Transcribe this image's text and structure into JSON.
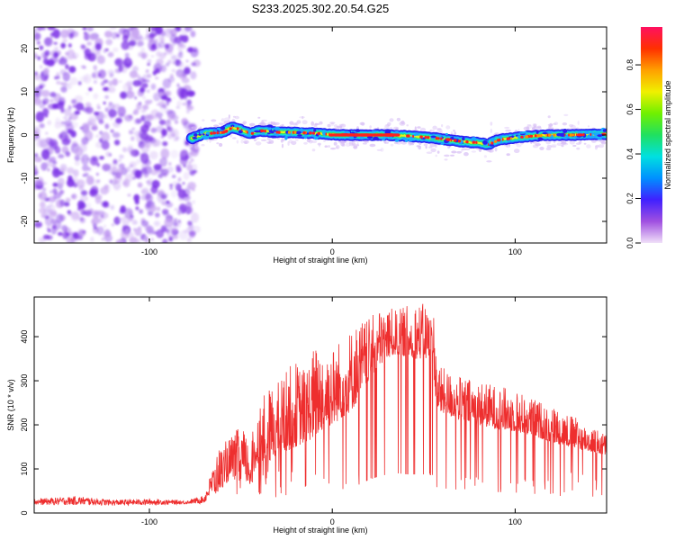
{
  "chart_data": [
    {
      "type": "heatmap",
      "title": "S233.2025.302.20.54.G25",
      "xlabel": "Height of straight line (km)",
      "ylabel": "Frequency (Hz)",
      "xlim": [
        -163,
        150
      ],
      "ylim": [
        -25,
        25
      ],
      "x_ticks": [
        -100,
        0,
        100
      ],
      "y_ticks": [
        -20,
        -10,
        0,
        10,
        20
      ],
      "colorbar": {
        "label": "Normalized spectral amplitude",
        "range": [
          0,
          0.97
        ],
        "ticks": [
          0.0,
          0.2,
          0.4,
          0.6,
          0.8
        ],
        "tick_labels": [
          "0.0",
          "0.2",
          "0.4",
          "0.6",
          "0.8"
        ],
        "colors": [
          "#f0e0f8",
          "#a050e0",
          "#4020ff",
          "#0090ff",
          "#00e0e0",
          "#20e060",
          "#70f000",
          "#f0f000",
          "#ffa000",
          "#ff3000",
          "#ff1060"
        ]
      },
      "noise_region": [
        -163,
        -77
      ],
      "noise_color": "#7a2ee6",
      "trace": {
        "x": [
          -77,
          -70,
          -60,
          -55,
          -50,
          -45,
          -40,
          -30,
          -20,
          -10,
          0,
          10,
          20,
          30,
          40,
          50,
          60,
          70,
          80,
          85,
          90,
          100,
          110,
          120,
          130,
          140,
          150
        ],
        "freq": [
          -0.8,
          0.3,
          0.6,
          1.8,
          1.2,
          0.3,
          1.0,
          0.6,
          0.6,
          0.4,
          0.1,
          0.0,
          0.0,
          0.0,
          -0.2,
          -0.5,
          -0.9,
          -1.5,
          -1.8,
          -2.2,
          -1.2,
          -0.6,
          -0.2,
          0.0,
          0.0,
          0.1,
          0.2
        ]
      }
    },
    {
      "type": "line",
      "series_name": "SNR",
      "xlabel": "Height of straight line (km)",
      "ylabel": "SNR (10 * v/v)",
      "xlim": [
        -163,
        150
      ],
      "ylim": [
        0,
        490
      ],
      "x_ticks": [
        -100,
        0,
        100
      ],
      "y_ticks": [
        0,
        100,
        200,
        300,
        400
      ],
      "color": "#ee2e2e",
      "envelope": {
        "x": [
          -163,
          -140,
          -120,
          -100,
          -80,
          -70,
          -62,
          -55,
          -50,
          -45,
          -40,
          -35,
          -30,
          -25,
          -20,
          -15,
          -10,
          -5,
          0,
          5,
          10,
          15,
          20,
          25,
          30,
          35,
          40,
          45,
          50,
          55,
          57,
          60,
          70,
          80,
          90,
          100,
          110,
          120,
          130,
          140,
          150
        ],
        "base": [
          18,
          18,
          17,
          18,
          20,
          22,
          50,
          80,
          90,
          60,
          120,
          115,
          130,
          140,
          150,
          160,
          170,
          190,
          200,
          215,
          230,
          260,
          300,
          330,
          350,
          360,
          355,
          350,
          350,
          345,
          235,
          225,
          210,
          200,
          190,
          185,
          175,
          160,
          150,
          140,
          130
        ],
        "peak": [
          32,
          38,
          30,
          32,
          28,
          40,
          150,
          175,
          200,
          160,
          250,
          280,
          300,
          330,
          345,
          330,
          380,
          390,
          380,
          400,
          420,
          440,
          440,
          460,
          470,
          460,
          470,
          480,
          475,
          490,
          350,
          330,
          310,
          300,
          290,
          280,
          260,
          245,
          225,
          200,
          180
        ]
      }
    }
  ]
}
